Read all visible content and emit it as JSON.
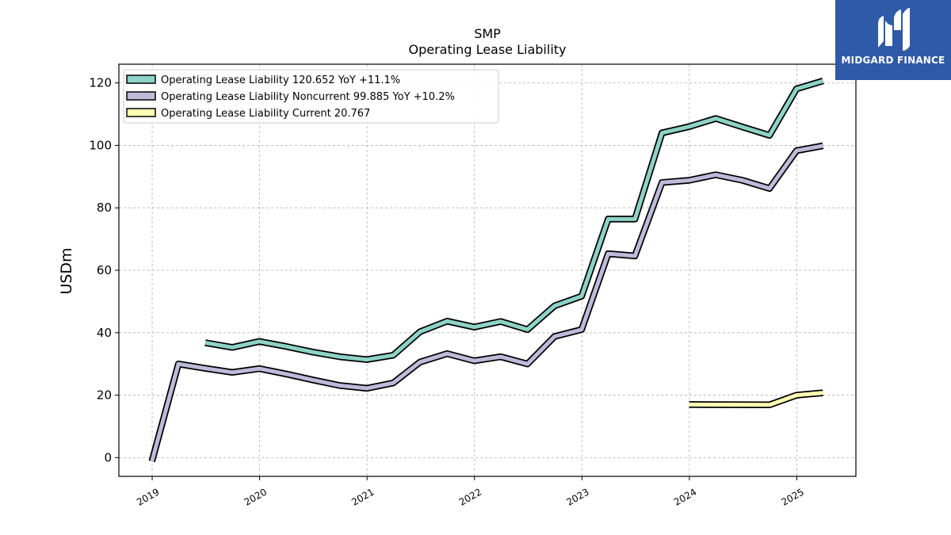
{
  "chart_data": {
    "type": "line",
    "title": "SMP",
    "subtitle": "Operating Lease Liability",
    "xlabel": "",
    "ylabel": "USDm",
    "ylim": [
      -6,
      126
    ],
    "xlim": [
      2018.69,
      2025.55
    ],
    "yticks": [
      0,
      20,
      40,
      60,
      80,
      100,
      120
    ],
    "xticks": [
      "2019",
      "2020",
      "2021",
      "2022",
      "2023",
      "2024",
      "2025"
    ],
    "grid": true,
    "legend_position": "top-left",
    "series": [
      {
        "name": "Operating Lease Liability",
        "legend_label": "Operating Lease Liability  120.652 YoY +11.1%",
        "color": "#8dd3c7",
        "x": [
          "2019-06-30",
          "2019-09-30",
          "2019-12-31",
          "2020-03-31",
          "2020-06-30",
          "2020-09-30",
          "2020-12-31",
          "2021-03-31",
          "2021-06-30",
          "2021-09-30",
          "2021-12-31",
          "2022-03-31",
          "2022-06-30",
          "2022-09-30",
          "2022-12-31",
          "2023-03-31",
          "2023-06-30",
          "2023-09-30",
          "2023-12-31",
          "2024-03-31",
          "2024-06-30",
          "2024-09-30",
          "2024-12-31",
          "2025-03-31"
        ],
        "values": [
          36.8,
          35.3,
          37.2,
          35.6,
          33.8,
          32.3,
          31.4,
          32.8,
          40.3,
          43.7,
          41.8,
          43.6,
          41.0,
          48.6,
          51.7,
          76.4,
          76.4,
          104.0,
          106.0,
          108.6,
          105.9,
          103.2,
          118.1,
          120.652
        ]
      },
      {
        "name": "Operating Lease Liability Noncurrent",
        "legend_label": "Operating Lease Liability Noncurrent  99.885 YoY +10.2%",
        "color": "#bebada",
        "x": [
          "2018-12-31",
          "2019-03-31",
          "2019-06-30",
          "2019-09-30",
          "2019-12-31",
          "2020-03-31",
          "2020-06-30",
          "2020-09-30",
          "2020-12-31",
          "2021-03-31",
          "2021-06-30",
          "2021-09-30",
          "2021-12-31",
          "2022-03-31",
          "2022-06-30",
          "2022-09-30",
          "2022-12-31",
          "2023-03-31",
          "2023-06-30",
          "2023-09-30",
          "2023-12-31",
          "2024-03-31",
          "2024-06-30",
          "2024-09-30",
          "2024-12-31",
          "2025-03-31"
        ],
        "values": [
          -1.2,
          30.0,
          28.6,
          27.3,
          28.5,
          26.8,
          24.9,
          23.1,
          22.2,
          23.9,
          30.6,
          33.3,
          31.0,
          32.3,
          30.0,
          38.8,
          41.0,
          65.3,
          64.6,
          88.1,
          88.8,
          90.6,
          88.8,
          86.2,
          98.3,
          99.885
        ]
      },
      {
        "name": "Operating Lease Liability Current",
        "legend_label": "Operating Lease Liability Current  20.767",
        "color": "#ffffb3",
        "x": [
          "2023-12-31",
          "2024-09-30",
          "2024-12-31",
          "2025-03-31"
        ],
        "values": [
          17.0,
          16.9,
          20.0,
          20.767
        ]
      }
    ]
  },
  "logo": {
    "text": "MIDGARD FINANCE",
    "color": "#2f5aa8"
  }
}
